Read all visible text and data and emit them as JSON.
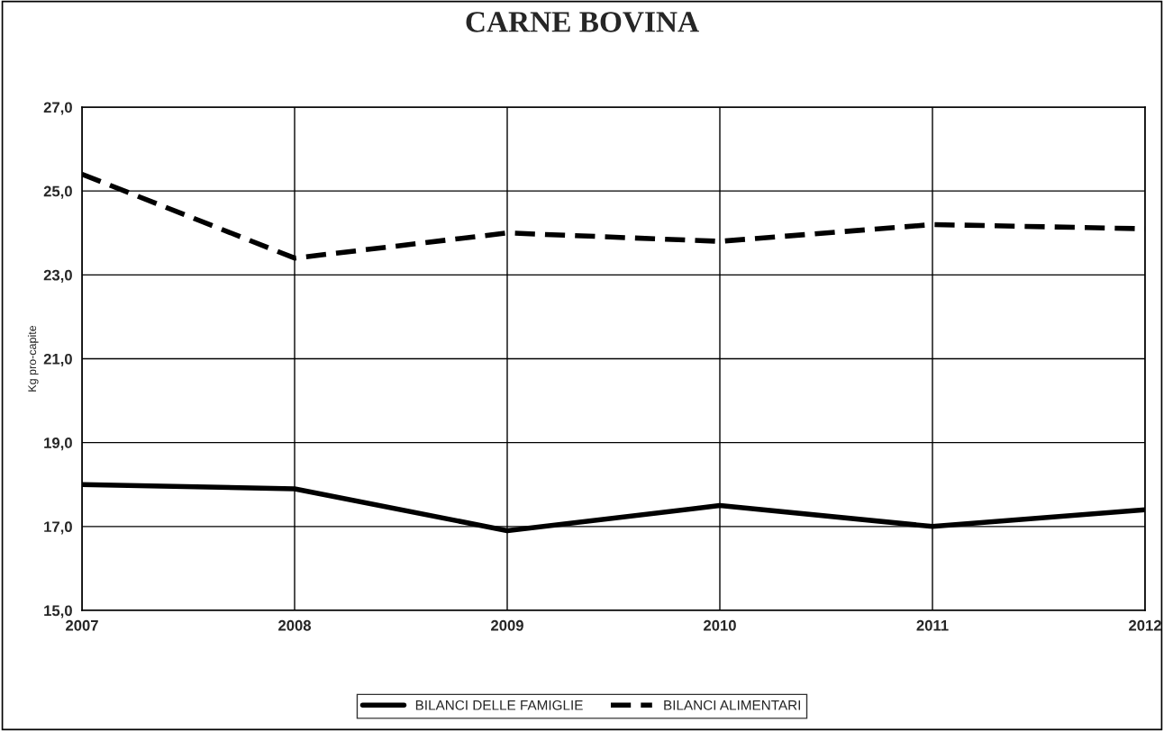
{
  "chart_data": {
    "type": "line",
    "title": "CARNE BOVINA",
    "ylabel": "Kg pro-capite",
    "x": [
      2007,
      2008,
      2009,
      2010,
      2011,
      2012
    ],
    "series": [
      {
        "name": "BILANCI DELLE FAMIGLIE",
        "color": "#000000",
        "line_style": "solid",
        "values": [
          18.0,
          17.9,
          16.9,
          17.5,
          17.0,
          17.4
        ]
      },
      {
        "name": "BILANCI ALIMENTARI",
        "color": "#000000",
        "line_style": "dashed",
        "values": [
          25.4,
          23.4,
          24.0,
          23.8,
          24.2,
          24.1
        ]
      }
    ],
    "xlim": [
      2007,
      2012
    ],
    "xticks": [
      2007,
      2008,
      2009,
      2010,
      2011,
      2012
    ],
    "ylim": [
      15,
      27
    ],
    "yticks": [
      {
        "value": 15,
        "label": "15,0"
      },
      {
        "value": 17,
        "label": "17,0"
      },
      {
        "value": 19,
        "label": "19,0"
      },
      {
        "value": 21,
        "label": "21,0"
      },
      {
        "value": 23,
        "label": "23,0"
      },
      {
        "value": 25,
        "label": "25,0"
      },
      {
        "value": 27,
        "label": "27,0"
      }
    ],
    "grid": true,
    "legend": "bottom",
    "marker": "none"
  }
}
